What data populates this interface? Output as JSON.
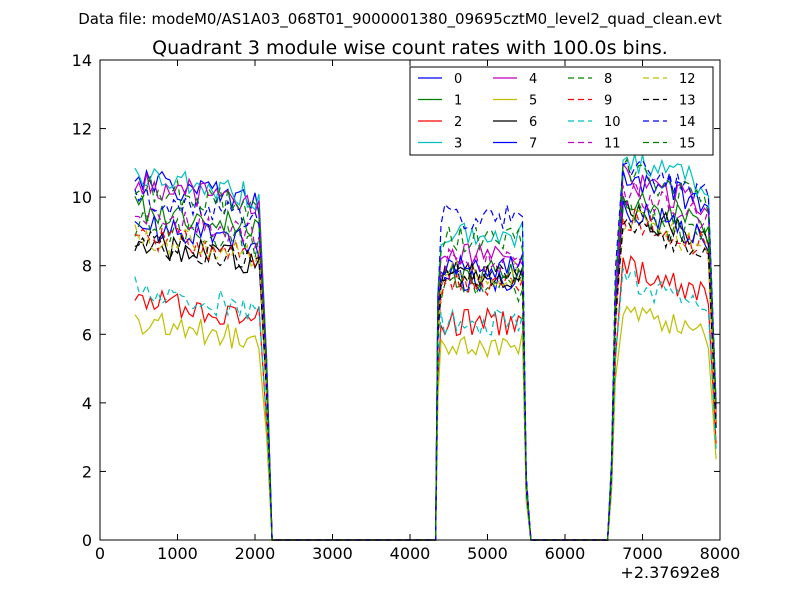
{
  "chart_data": {
    "type": "line",
    "suptitle": "Data file: modeM0/AS1A03_068T01_9000001380_09695cztM0_level2_quad_clean.evt",
    "title": "Quadrant 3 module wise count rates with 100.0s bins.",
    "xlabel": "",
    "ylabel": "",
    "x_offset_label": "+2.37692e8",
    "xlim": [
      0,
      8000
    ],
    "ylim": [
      0,
      14
    ],
    "xticks": [
      "0",
      "1000",
      "2000",
      "3000",
      "4000",
      "5000",
      "6000",
      "7000",
      "8000"
    ],
    "yticks": [
      "0",
      "2",
      "4",
      "6",
      "8",
      "10",
      "12",
      "14"
    ],
    "legend_position": "top-right",
    "segments": [
      {
        "start": 450,
        "end": 2050
      },
      {
        "start": 4400,
        "end": 5450
      },
      {
        "start": 6750,
        "end": 7850
      }
    ],
    "edge_points": {
      "lead": [
        2150,
        2220,
        4330,
        4360,
        5500,
        5560,
        6550,
        6600,
        6650
      ],
      "end": 7950
    },
    "series": [
      {
        "name": "0",
        "color": "#0000ff",
        "dash": "solid",
        "levels": [
          9.6,
          7.5,
          10.1
        ]
      },
      {
        "name": "1",
        "color": "#008000",
        "dash": "solid",
        "levels": [
          8.8,
          7.6,
          9.4
        ]
      },
      {
        "name": "2",
        "color": "#ff0000",
        "dash": "solid",
        "levels": [
          6.2,
          6.2,
          7.4
        ]
      },
      {
        "name": "3",
        "color": "#00bfbf",
        "dash": "solid",
        "levels": [
          9.7,
          8.8,
          10.6
        ]
      },
      {
        "name": "4",
        "color": "#bf00bf",
        "dash": "solid",
        "levels": [
          9.5,
          8.2,
          10.0
        ]
      },
      {
        "name": "5",
        "color": "#bfbf00",
        "dash": "solid",
        "levels": [
          5.5,
          5.5,
          6.2
        ]
      },
      {
        "name": "6",
        "color": "#000000",
        "dash": "solid",
        "levels": [
          7.8,
          7.6,
          9.0
        ]
      },
      {
        "name": "7",
        "color": "#0000ff",
        "dash": "solid",
        "levels": [
          8.3,
          7.8,
          9.1
        ]
      },
      {
        "name": "8",
        "color": "#008000",
        "dash": "dashed",
        "levels": [
          8.3,
          7.2,
          9.0
        ]
      },
      {
        "name": "9",
        "color": "#ff0000",
        "dash": "dashed",
        "levels": [
          8.0,
          7.3,
          8.8
        ]
      },
      {
        "name": "10",
        "color": "#00bfbf",
        "dash": "dashed",
        "levels": [
          6.4,
          6.2,
          7.0
        ]
      },
      {
        "name": "11",
        "color": "#bf00bf",
        "dash": "dashed",
        "levels": [
          8.6,
          8.0,
          9.6
        ]
      },
      {
        "name": "12",
        "color": "#bfbf00",
        "dash": "dashed",
        "levels": [
          8.0,
          7.6,
          8.8
        ]
      },
      {
        "name": "13",
        "color": "#000000",
        "dash": "dashed",
        "levels": [
          7.8,
          7.6,
          8.6
        ]
      },
      {
        "name": "14",
        "color": "#0000ff",
        "dash": "dashed",
        "levels": [
          9.1,
          9.3,
          10.3
        ]
      },
      {
        "name": "15",
        "color": "#008000",
        "dash": "dashed",
        "levels": [
          9.4,
          8.6,
          10.2
        ]
      }
    ]
  }
}
